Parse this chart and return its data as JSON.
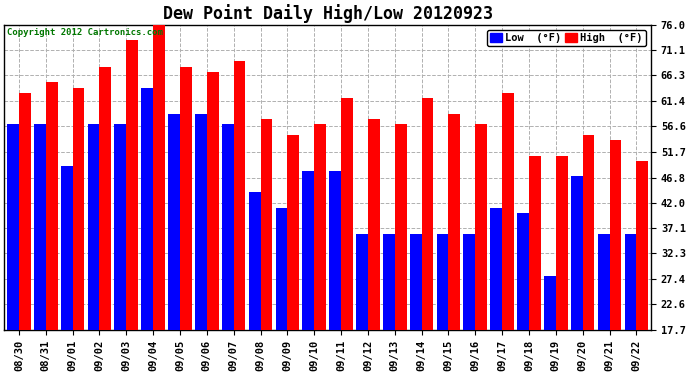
{
  "title": "Dew Point Daily High/Low 20120923",
  "copyright": "Copyright 2012 Cartronics.com",
  "legend_low": "Low  (°F)",
  "legend_high": "High  (°F)",
  "dates": [
    "08/30",
    "08/31",
    "09/01",
    "09/02",
    "09/03",
    "09/04",
    "09/05",
    "09/06",
    "09/07",
    "09/08",
    "09/09",
    "09/10",
    "09/11",
    "09/12",
    "09/13",
    "09/14",
    "09/15",
    "09/16",
    "09/17",
    "09/18",
    "09/19",
    "09/20",
    "09/21",
    "09/22"
  ],
  "high": [
    63,
    65,
    64,
    68,
    73,
    77,
    68,
    67,
    69,
    58,
    55,
    57,
    62,
    58,
    57,
    62,
    59,
    57,
    63,
    51,
    51,
    55,
    54,
    50
  ],
  "low": [
    57,
    57,
    49,
    57,
    57,
    64,
    59,
    59,
    57,
    44,
    41,
    48,
    48,
    36,
    36,
    36,
    36,
    36,
    41,
    40,
    28,
    47,
    36,
    36
  ],
  "ylim": [
    17.7,
    76.0
  ],
  "yticks": [
    17.7,
    22.6,
    27.4,
    32.3,
    37.1,
    42.0,
    46.8,
    51.7,
    56.6,
    61.4,
    66.3,
    71.1,
    76.0
  ],
  "bar_width": 0.44,
  "low_color": "#0000ff",
  "high_color": "#ff0000",
  "bg_color": "#ffffff",
  "grid_color": "#b0b0b0",
  "title_fontsize": 12,
  "tick_fontsize": 7.5,
  "copyright_color": "#007700"
}
